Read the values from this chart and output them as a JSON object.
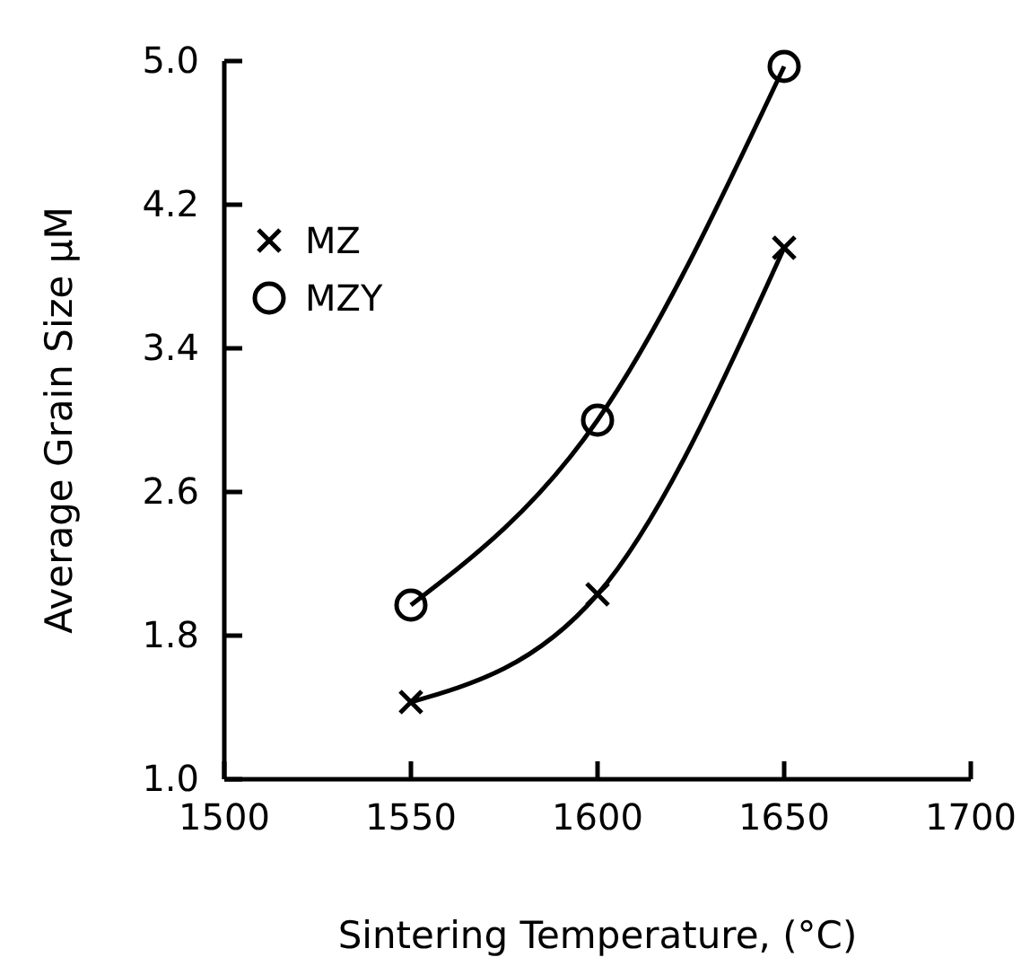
{
  "chart_data": {
    "type": "line",
    "xlabel": "Sintering Temperature, (°C)",
    "ylabel": "Average Grain Size μM",
    "x": [
      1550,
      1600,
      1650
    ],
    "series": [
      {
        "name": "MZ",
        "color": "#000000",
        "marker": "cross",
        "values": [
          1.43,
          2.03,
          3.96
        ]
      },
      {
        "name": "MZY",
        "color": "#000000",
        "marker": "circle",
        "values": [
          1.97,
          3.0,
          4.97
        ]
      }
    ],
    "xlim": [
      1500,
      1700
    ],
    "xticks": [
      1500,
      1550,
      1600,
      1650,
      1700
    ],
    "ylim": [
      1.0,
      5.0
    ],
    "yticks": [
      {
        "value": 1.0,
        "label": "1.0"
      },
      1.8,
      2.6,
      3.4,
      4.2,
      {
        "value": 5.0,
        "label": "5.0"
      }
    ],
    "grid": false,
    "legend": "top left",
    "line_style": "solid"
  }
}
